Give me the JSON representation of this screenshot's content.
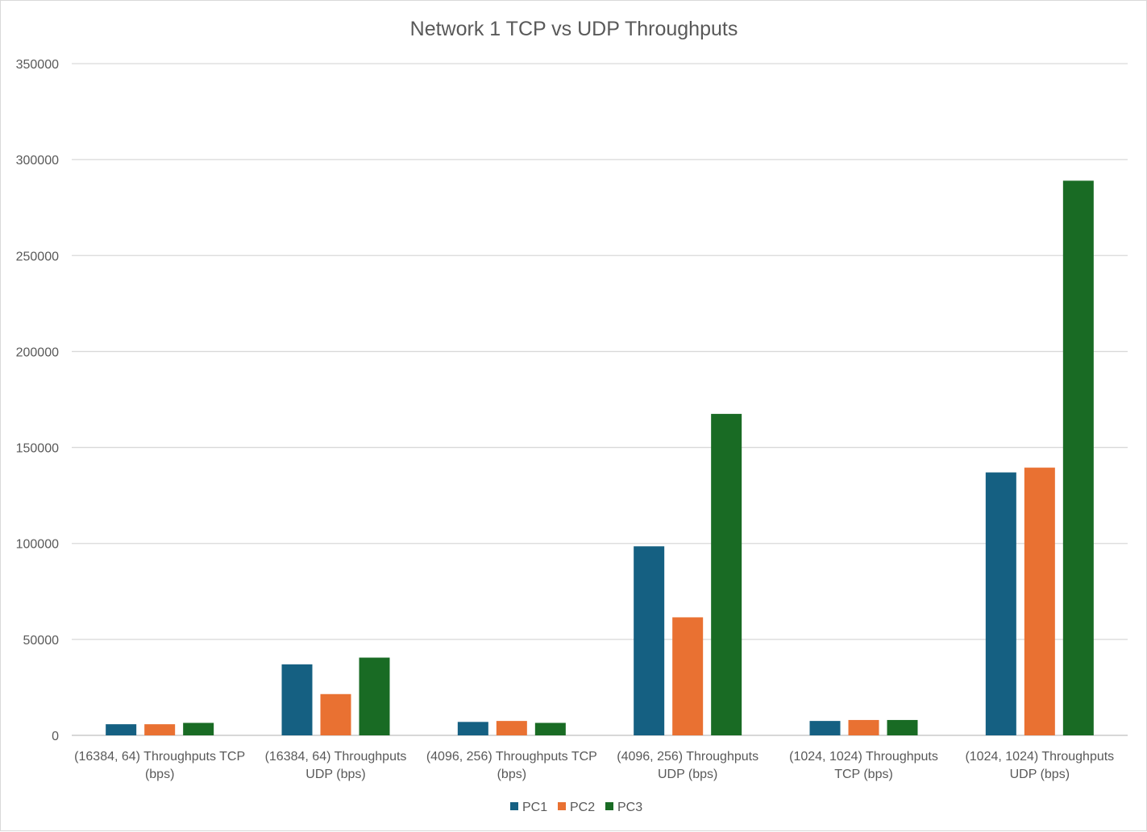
{
  "chart_data": {
    "type": "bar",
    "title": "Network 1 TCP vs UDP Throughputs",
    "xlabel": "",
    "ylabel": "",
    "ylim": [
      0,
      350000
    ],
    "yticks": [
      0,
      50000,
      100000,
      150000,
      200000,
      250000,
      300000,
      350000
    ],
    "grid": true,
    "legend_position": "bottom",
    "categories": [
      [
        "(16384, 64) Throughputs TCP",
        "(bps)"
      ],
      [
        "(16384, 64) Throughputs",
        "UDP (bps)"
      ],
      [
        "(4096, 256) Throughputs TCP",
        "(bps)"
      ],
      [
        "(4096, 256) Throughputs",
        "UDP (bps)"
      ],
      [
        "(1024, 1024) Throughputs",
        "TCP (bps)"
      ],
      [
        "(1024, 1024) Throughputs",
        "UDP (bps)"
      ]
    ],
    "series": [
      {
        "name": "PC1",
        "color": "#156082",
        "values": [
          5800,
          37000,
          7000,
          98500,
          7500,
          137000
        ]
      },
      {
        "name": "PC2",
        "color": "#e97132",
        "values": [
          5800,
          21500,
          7500,
          61500,
          8000,
          139500
        ]
      },
      {
        "name": "PC3",
        "color": "#196b24",
        "values": [
          6500,
          40500,
          6500,
          167500,
          8000,
          289000
        ]
      }
    ]
  }
}
